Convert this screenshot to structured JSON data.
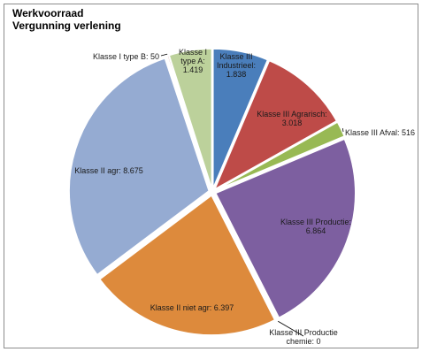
{
  "chart_data": {
    "type": "pie",
    "title": "Werkvoorraad",
    "subtitle": "Vergunning verlening",
    "slices": [
      {
        "label": "Klasse III Industrieel",
        "value_label": "1.838",
        "value": 1838,
        "color": "#4a7ebb",
        "label_lines": [
          "Klasse III",
          "Industrieel:",
          "1.838"
        ]
      },
      {
        "label": "Klasse III Agrarisch",
        "value_label": "3.018",
        "value": 3018,
        "color": "#be4b48",
        "label_lines": [
          "Klasse III Agrarisch:",
          "3.018"
        ]
      },
      {
        "label": "Klasse III Afval",
        "value_label": "516",
        "value": 516,
        "color": "#98b954",
        "label_lines": [
          "Klasse III Afval: 516"
        ]
      },
      {
        "label": "Klasse III Productie",
        "value_label": "6.864",
        "value": 6864,
        "color": "#7d5fa0",
        "label_lines": [
          "Klasse III Productie:",
          "6.864"
        ]
      },
      {
        "label": "Klasse III Productie chemie",
        "value_label": "0",
        "value": 0,
        "color": "#46aac5",
        "label_lines": [
          "Klasse III Productie",
          "chemie: 0"
        ]
      },
      {
        "label": "Klasse II niet agr",
        "value_label": "6.397",
        "value": 6397,
        "color": "#dd8a3c",
        "label_lines": [
          "Klasse II niet agr: 6.397"
        ]
      },
      {
        "label": "Klasse II agr",
        "value_label": "8.675",
        "value": 8675,
        "color": "#95abd2",
        "label_lines": [
          "Klasse II agr: 8.675"
        ]
      },
      {
        "label": "Klasse I type B",
        "value_label": "50",
        "value": 50,
        "color": "#d79190",
        "label_lines": [
          "Klasse I type B: 50"
        ]
      },
      {
        "label": "Klasse I type A",
        "value_label": "1.419",
        "value": 1419,
        "color": "#bcd19b",
        "label_lines": [
          "Klasse I",
          "type A:",
          "1.419"
        ]
      }
    ]
  }
}
